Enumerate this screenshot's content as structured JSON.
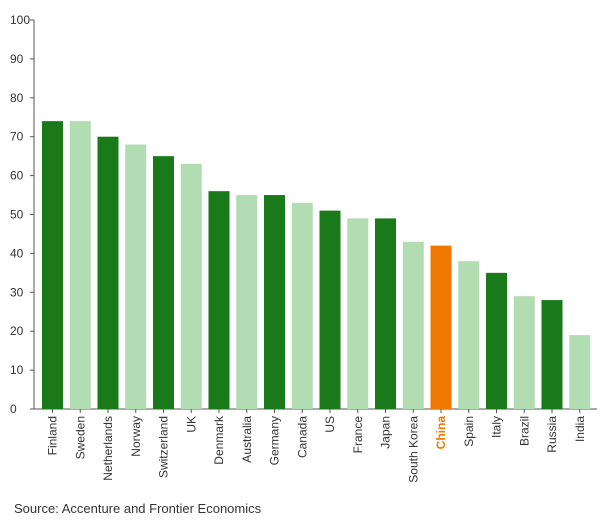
{
  "chart_data": {
    "type": "bar",
    "categories": [
      "Finland",
      "Sweden",
      "Netherlands",
      "Norway",
      "Switzerland",
      "UK",
      "Denmark",
      "Australia",
      "Germany",
      "Canada",
      "US",
      "France",
      "Japan",
      "South Korea",
      "China",
      "Spain",
      "Italy",
      "Brazil",
      "Russia",
      "India"
    ],
    "values": [
      74,
      74,
      70,
      68,
      65,
      63,
      56,
      55,
      55,
      53,
      51,
      49,
      49,
      43,
      42,
      38,
      35,
      29,
      28,
      19
    ],
    "ylim": [
      0,
      100
    ],
    "yticks": [
      0,
      10,
      20,
      30,
      40,
      50,
      60,
      70,
      80,
      90,
      100
    ],
    "grid": false,
    "bar_colors": [
      "#1a7a1a",
      "#b2dcb2",
      "#1a7a1a",
      "#b2dcb2",
      "#1a7a1a",
      "#b2dcb2",
      "#1a7a1a",
      "#b2dcb2",
      "#1a7a1a",
      "#b2dcb2",
      "#1a7a1a",
      "#b2dcb2",
      "#1a7a1a",
      "#b2dcb2",
      "#f07800",
      "#b2dcb2",
      "#1a7a1a",
      "#b2dcb2",
      "#1a7a1a",
      "#b2dcb2"
    ],
    "highlight": {
      "category": "China",
      "color": "#f07800"
    }
  },
  "source": "Source: Accenture and Frontier Economics"
}
